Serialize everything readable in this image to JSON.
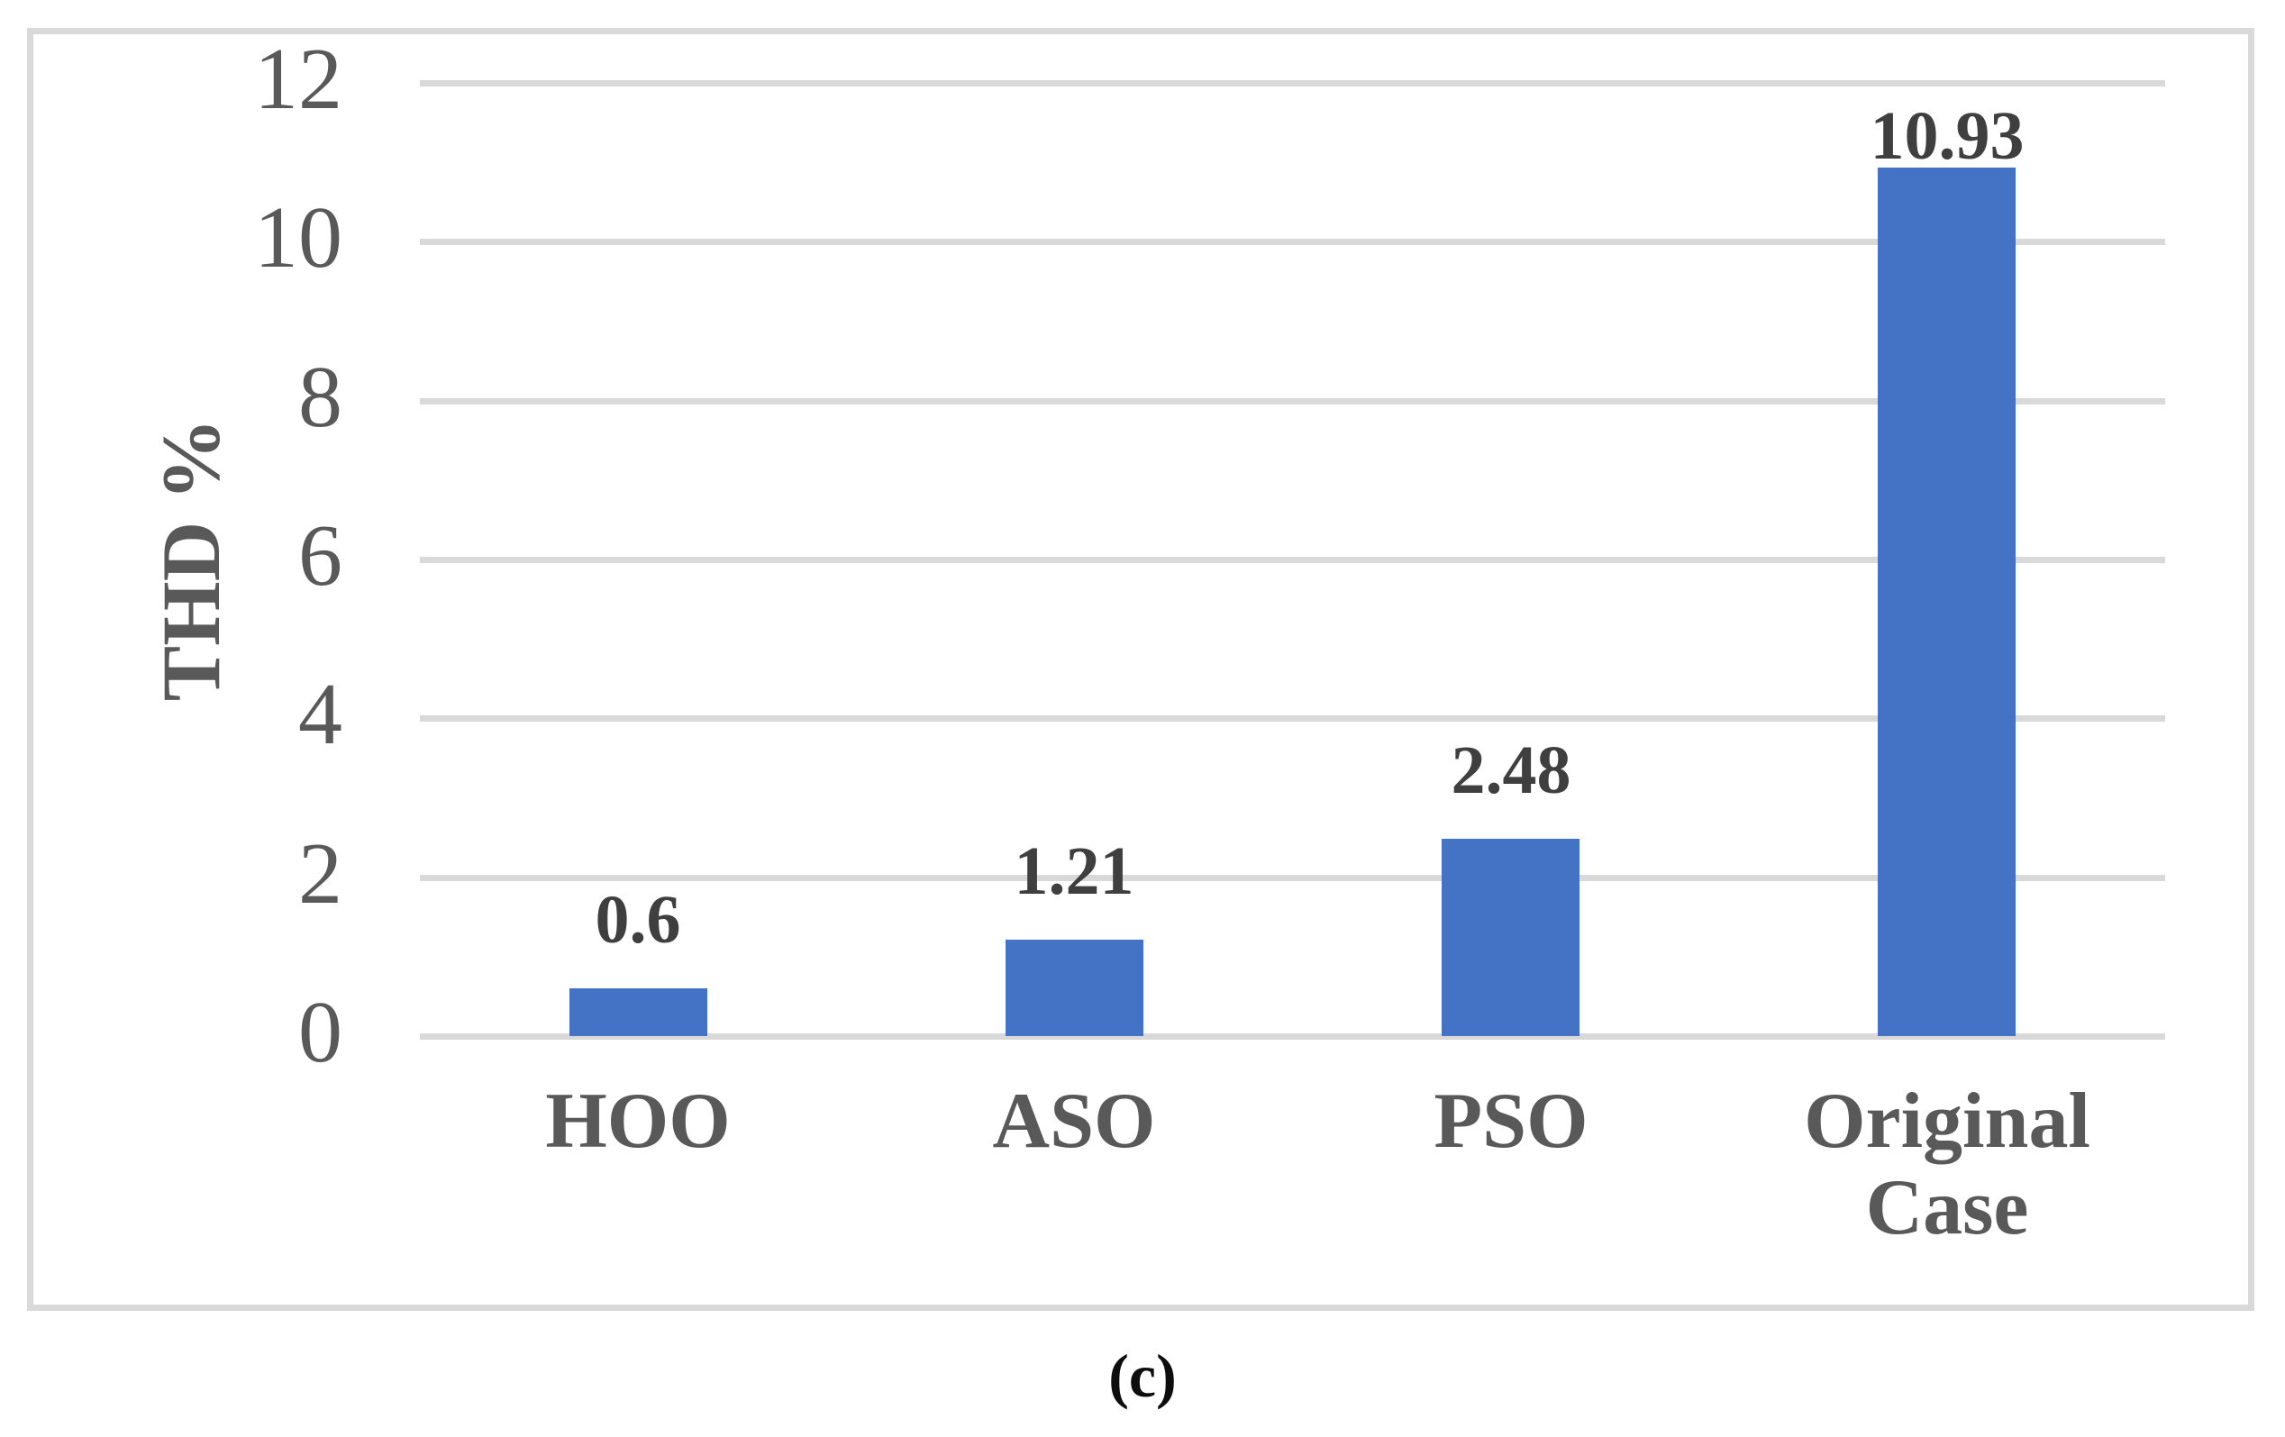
{
  "figure": {
    "caption": "(c)"
  },
  "chart_data": {
    "type": "bar",
    "title": "",
    "categories": [
      "HOO",
      "ASO",
      "PSO",
      "Original Case"
    ],
    "values": [
      0.6,
      1.21,
      2.48,
      10.93
    ],
    "data_labels": [
      "0.6",
      "1.21",
      "2.48",
      "10.93"
    ],
    "xlabel": "",
    "ylabel": "THD %",
    "ylim": [
      0,
      12
    ],
    "yticks": [
      0,
      2,
      4,
      6,
      8,
      10,
      12
    ],
    "grid": true,
    "legend_position": "none",
    "bar_color": "#4472C4",
    "gridline_color": "#D9D9D9",
    "border_color": "#D9D9D9",
    "axis_text_color": "#595959",
    "data_label_color": "#3F3F3F",
    "caption_color": "#0D0D0D"
  }
}
